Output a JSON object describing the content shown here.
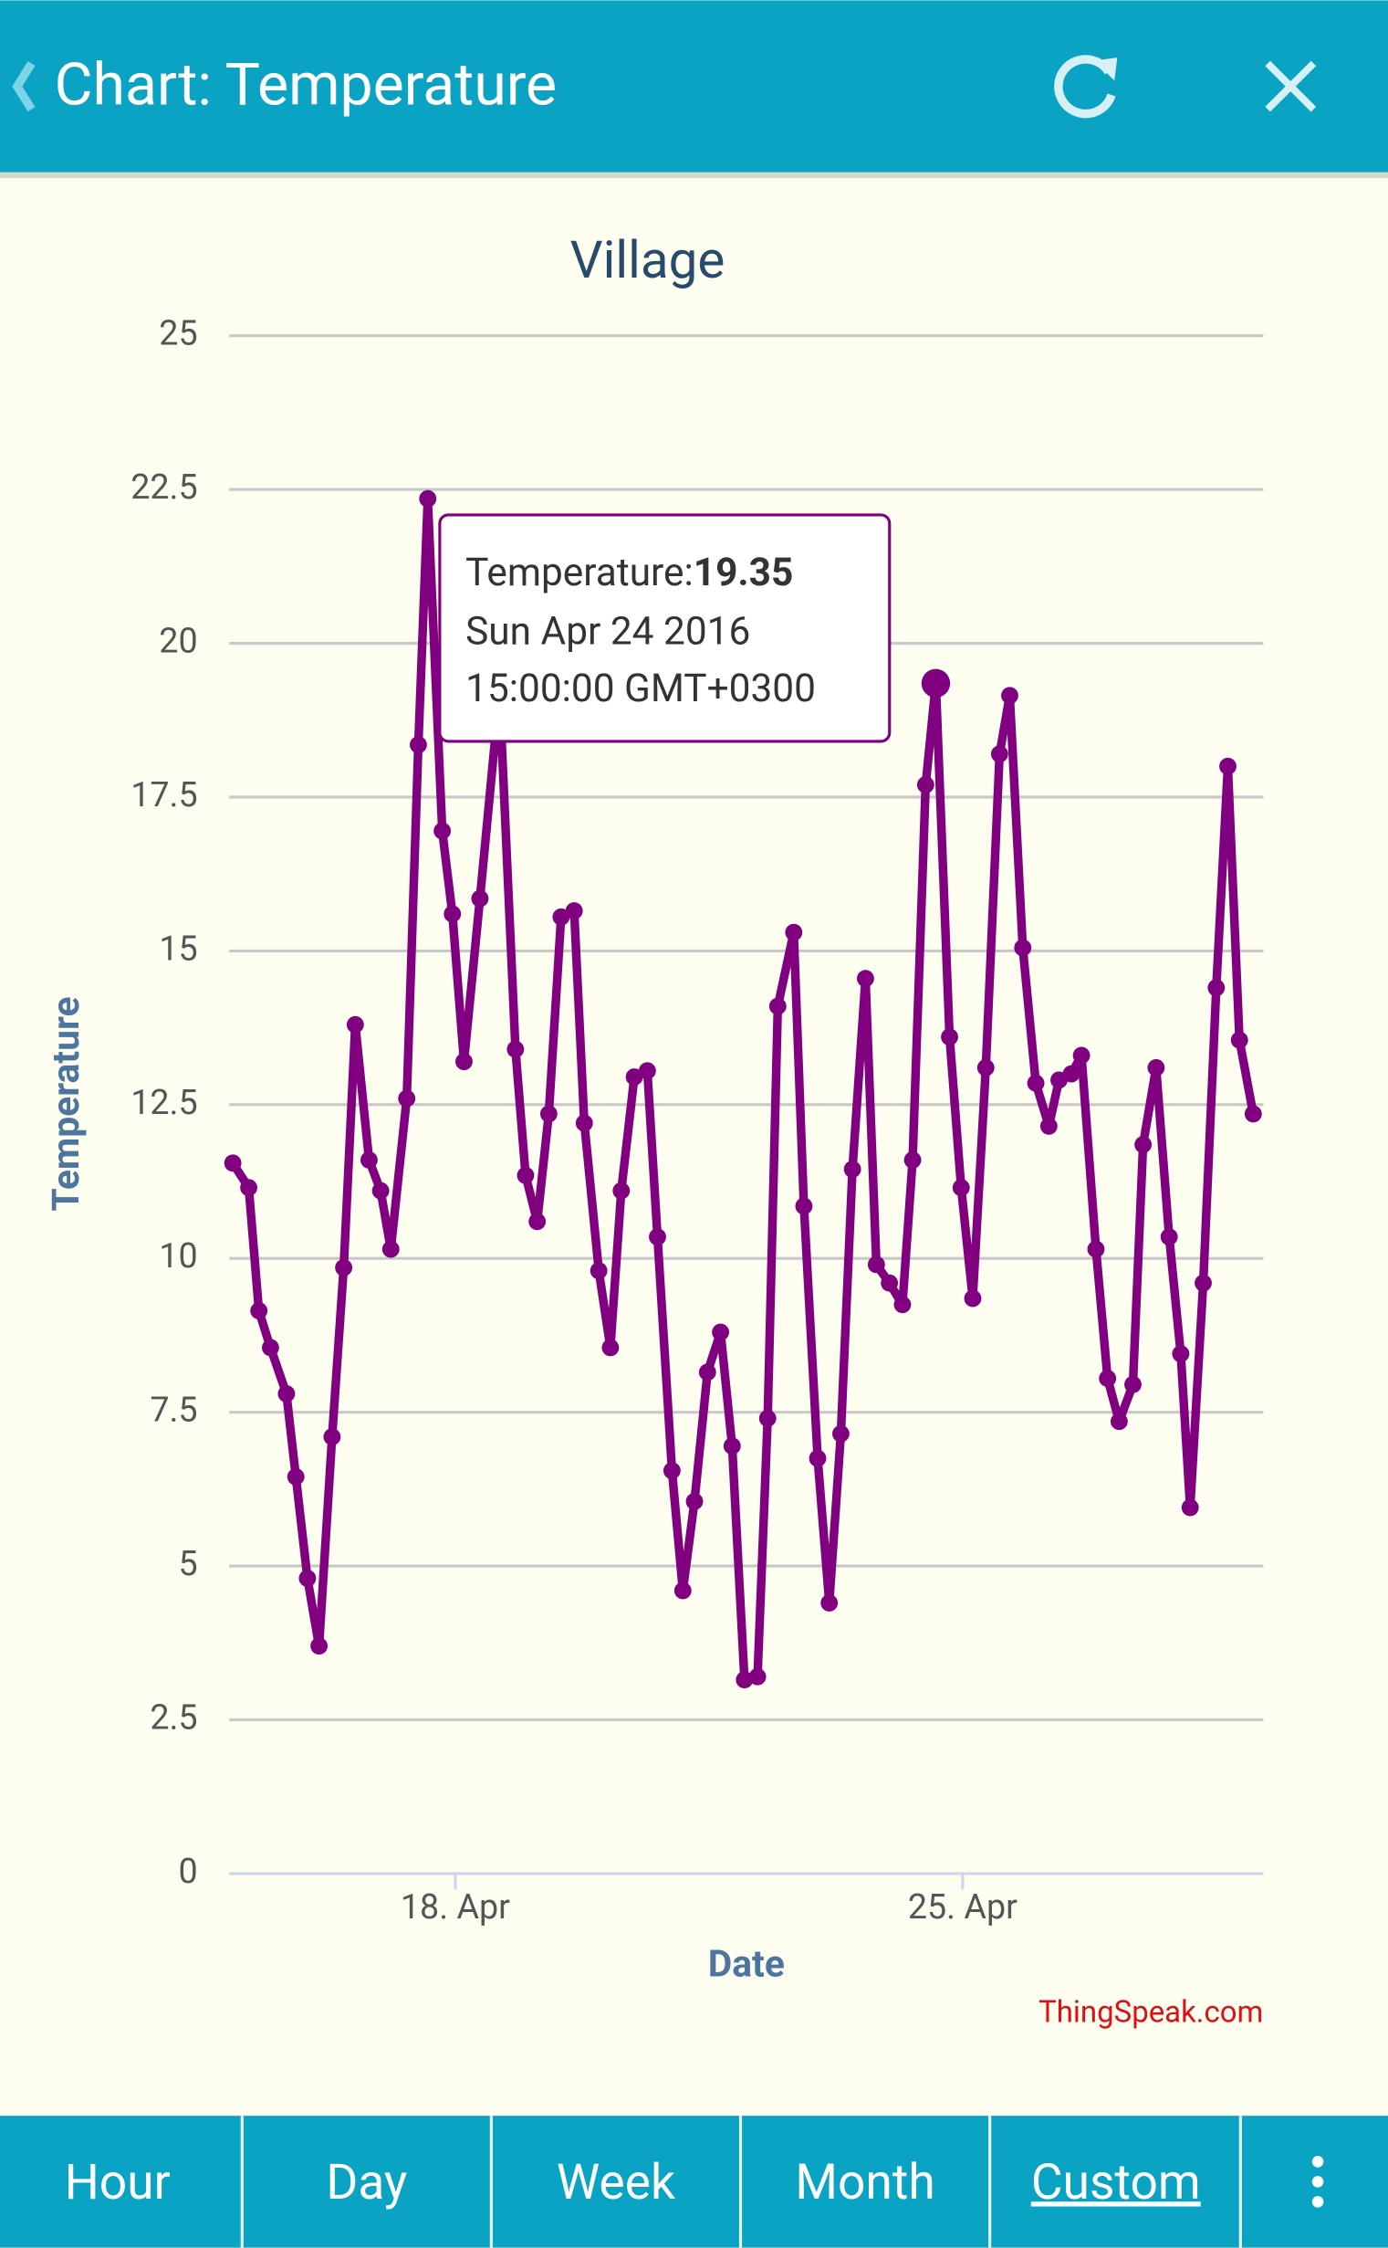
{
  "header": {
    "title": "Chart: Temperature"
  },
  "chart_data": {
    "type": "line",
    "title": "Village",
    "x_label": "Date",
    "y_label": "Temperature",
    "color": "#800080",
    "grid": true,
    "x": [
      14.93,
      15.15,
      15.29,
      15.45,
      15.67,
      15.8,
      15.96,
      16.12,
      16.3,
      16.46,
      16.62,
      16.81,
      16.97,
      17.11,
      17.33,
      17.49,
      17.62,
      17.82,
      17.96,
      18.12,
      18.34,
      18.61,
      18.83,
      18.97,
      19.13,
      19.29,
      19.46,
      19.64,
      19.78,
      19.98,
      20.14,
      20.29,
      20.47,
      20.65,
      20.79,
      20.99,
      21.14,
      21.3,
      21.48,
      21.66,
      21.82,
      21.99,
      22.17,
      22.31,
      22.45,
      22.67,
      22.81,
      23.0,
      23.16,
      23.32,
      23.48,
      23.66,
      23.81,
      23.99,
      24.17,
      24.31,
      24.49,
      24.63,
      24.82,
      24.98,
      25.14,
      25.32,
      25.51,
      25.65,
      25.83,
      26.01,
      26.19,
      26.33,
      26.5,
      26.64,
      26.84,
      27.0,
      27.16,
      27.35,
      27.49,
      27.67,
      27.85,
      28.01,
      28.14,
      28.32,
      28.5,
      28.66,
      28.82,
      29.01
    ],
    "values": [
      11.55,
      11.15,
      9.15,
      8.55,
      7.8,
      6.45,
      4.8,
      3.7,
      7.1,
      9.85,
      13.8,
      11.6,
      11.1,
      10.15,
      12.6,
      18.35,
      22.35,
      16.95,
      15.6,
      13.2,
      15.85,
      19.2,
      13.4,
      11.35,
      10.6,
      12.35,
      15.55,
      15.65,
      12.2,
      9.8,
      8.55,
      11.1,
      12.95,
      13.05,
      10.35,
      6.55,
      4.6,
      6.05,
      8.15,
      8.8,
      6.95,
      3.15,
      3.2,
      7.4,
      14.1,
      15.3,
      10.85,
      6.75,
      4.4,
      7.15,
      11.45,
      14.55,
      9.9,
      9.6,
      9.25,
      11.6,
      17.7,
      19.35,
      13.6,
      11.15,
      9.35,
      13.1,
      18.2,
      19.15,
      15.05,
      12.85,
      12.15,
      12.9,
      13.0,
      13.3,
      10.15,
      8.05,
      7.35,
      7.95,
      11.85,
      13.1,
      10.35,
      8.45,
      5.95,
      9.6,
      14.4,
      18.0,
      13.55,
      12.35
    ],
    "xlim": [
      14.88,
      29.15
    ],
    "xticks": [
      {
        "value": 18,
        "label": "18. Apr"
      },
      {
        "value": 25,
        "label": "25. Apr"
      }
    ],
    "ylim": [
      0,
      25
    ],
    "yticks": [
      0,
      2.5,
      5,
      7.5,
      10,
      12.5,
      15,
      17.5,
      20,
      22.5,
      25
    ],
    "tooltip": {
      "label": "Temperature:",
      "value": 19.35,
      "date": "Sun Apr 24 2016",
      "time": "15:00:00 GMT+0300"
    },
    "credit": "ThingSpeak.com"
  },
  "tabs": [
    "Hour",
    "Day",
    "Week",
    "Month",
    "Custom"
  ]
}
